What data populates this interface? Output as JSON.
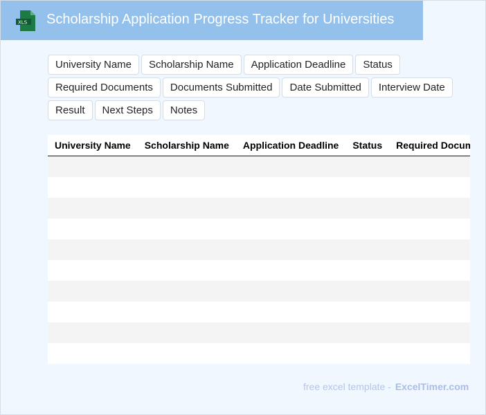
{
  "header": {
    "title": "Scholarship Application Progress Tracker for Universities",
    "icon": "xls-file-icon",
    "icon_text": "XLS",
    "color": "#93c1ec"
  },
  "fields": [
    "University Name",
    "Scholarship Name",
    "Application Deadline",
    "Status",
    "Required Documents",
    "Documents Submitted",
    "Date Submitted",
    "Interview Date",
    "Result",
    "Next Steps",
    "Notes"
  ],
  "table": {
    "columns": [
      "University Name",
      "Scholarship Name",
      "Application Deadline",
      "Status",
      "Required Documents"
    ],
    "row_count": 10
  },
  "footer": {
    "text": "free excel template -",
    "brand": "ExcelTimer.com"
  }
}
